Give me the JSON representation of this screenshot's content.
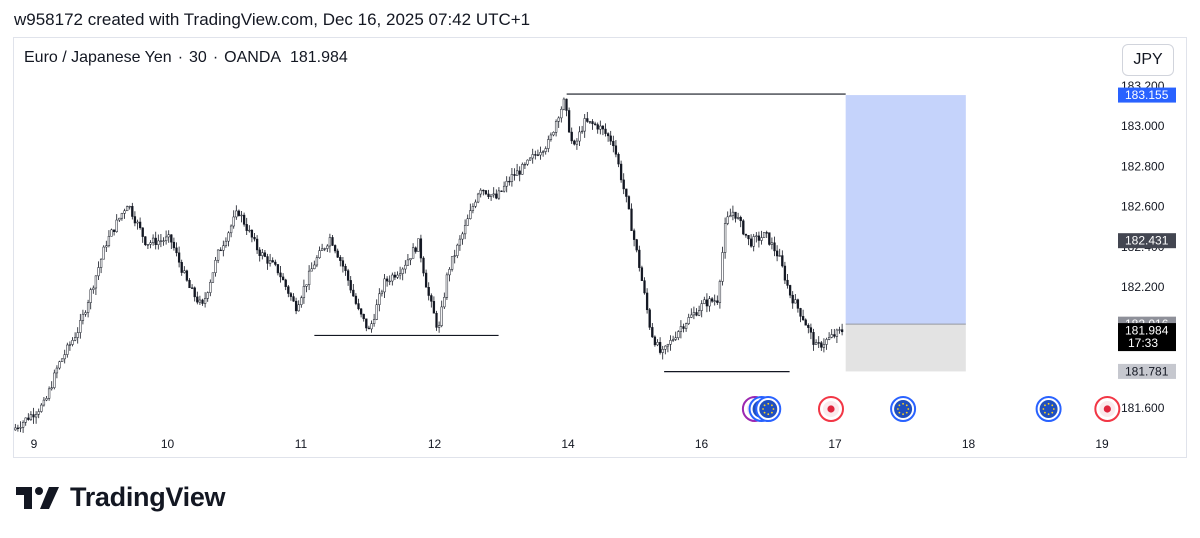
{
  "header": {
    "caption": "w958172 created with TradingView.com, Dec 16, 2025 07:42 UTC+1",
    "symbol": "Euro / Japanese Yen",
    "interval": "30",
    "exchange": "OANDA",
    "last_price": "181.984",
    "currency_button": "JPY"
  },
  "brand": {
    "name": "TradingView",
    "icon": "tradingview-logo-icon"
  },
  "colors": {
    "candle": "#131722",
    "target_zone": "#c5d3fb",
    "stop_zone": "#e3e3e3",
    "price_blue": "#2962ff",
    "label_dark": "#434651",
    "label_grey": "#8e9099",
    "event_red": "#f23645",
    "event_blue": "#2962ff",
    "event_purple": "#9c27b0"
  },
  "chart_data": {
    "type": "candlestick",
    "x_ticks": [
      {
        "label": "9",
        "t": 0
      },
      {
        "label": "10",
        "t": 1
      },
      {
        "label": "11",
        "t": 2
      },
      {
        "label": "12",
        "t": 3
      },
      {
        "label": "14",
        "t": 4
      },
      {
        "label": "16",
        "t": 5
      },
      {
        "label": "17",
        "t": 6
      },
      {
        "label": "18",
        "t": 7
      },
      {
        "label": "19",
        "t": 8
      }
    ],
    "ylim": [
      181.44,
      183.22
    ],
    "y_ticks": [
      {
        "value": 183.2,
        "label": "183.200"
      },
      {
        "value": 183.0,
        "label": "183.000"
      },
      {
        "value": 182.8,
        "label": "182.800"
      },
      {
        "value": 182.6,
        "label": "182.600"
      },
      {
        "value": 182.4,
        "label": "182.400"
      },
      {
        "value": 182.2,
        "label": "182.200"
      },
      {
        "value": 181.6,
        "label": "181.600"
      }
    ],
    "price_labels": [
      {
        "value": 183.155,
        "label": "183.155",
        "style": "blue"
      },
      {
        "value": 182.431,
        "label": "182.431",
        "style": "dark"
      },
      {
        "value": 182.016,
        "label": "182.016",
        "style": "grey"
      },
      {
        "value": 181.984,
        "label": "181.984",
        "sub": "17:33",
        "style": "black"
      },
      {
        "value": 181.781,
        "label": "181.781",
        "style": "lightgrey"
      }
    ],
    "path": [
      [
        -0.14,
        181.49
      ],
      [
        0.1,
        181.62
      ],
      [
        0.2,
        181.81
      ],
      [
        0.36,
        182.0
      ],
      [
        0.56,
        182.42
      ],
      [
        0.72,
        182.62
      ],
      [
        0.86,
        182.42
      ],
      [
        1.04,
        182.44
      ],
      [
        1.18,
        182.2
      ],
      [
        1.28,
        182.1
      ],
      [
        1.4,
        182.37
      ],
      [
        1.55,
        182.58
      ],
      [
        1.7,
        182.38
      ],
      [
        1.85,
        182.28
      ],
      [
        1.98,
        182.1
      ],
      [
        2.12,
        182.32
      ],
      [
        2.24,
        182.45
      ],
      [
        2.35,
        182.28
      ],
      [
        2.45,
        182.08
      ],
      [
        2.53,
        181.98
      ],
      [
        2.64,
        182.22
      ],
      [
        2.78,
        182.3
      ],
      [
        2.9,
        182.42
      ],
      [
        2.97,
        182.17
      ],
      [
        3.05,
        181.98
      ],
      [
        3.12,
        182.28
      ],
      [
        3.24,
        182.48
      ],
      [
        3.36,
        182.7
      ],
      [
        3.48,
        182.64
      ],
      [
        3.6,
        182.75
      ],
      [
        3.7,
        182.8
      ],
      [
        3.8,
        182.88
      ],
      [
        3.88,
        182.92
      ],
      [
        3.94,
        183.05
      ],
      [
        3.99,
        183.12
      ],
      [
        4.06,
        182.88
      ],
      [
        4.14,
        183.02
      ],
      [
        4.25,
        183.0
      ],
      [
        4.36,
        182.92
      ],
      [
        4.46,
        182.62
      ],
      [
        4.55,
        182.32
      ],
      [
        4.64,
        181.98
      ],
      [
        4.72,
        181.86
      ],
      [
        4.86,
        182.0
      ],
      [
        5.04,
        182.12
      ],
      [
        5.14,
        182.14
      ],
      [
        5.2,
        182.52
      ],
      [
        5.26,
        182.58
      ],
      [
        5.38,
        182.42
      ],
      [
        5.5,
        182.46
      ],
      [
        5.6,
        182.35
      ],
      [
        5.68,
        182.17
      ],
      [
        5.78,
        182.05
      ],
      [
        5.88,
        181.9
      ],
      [
        5.99,
        181.95
      ],
      [
        6.07,
        181.984
      ]
    ],
    "lines": [
      {
        "name": "high-level",
        "t1": 3.99,
        "t2": 6.08,
        "value": 183.16
      },
      {
        "name": "low-level-a",
        "t1": 2.1,
        "t2": 3.48,
        "value": 181.96
      },
      {
        "name": "low-level-b",
        "t1": 4.72,
        "t2": 5.66,
        "value": 181.78
      }
    ],
    "position": {
      "t1": 6.08,
      "t2": 6.98,
      "entry": 182.016,
      "target": 183.155,
      "stop": 181.781
    },
    "events": [
      {
        "t": 5.4,
        "type": "custom",
        "color": "#9c27b0"
      },
      {
        "t": 5.45,
        "type": "eu",
        "color": "#2962ff"
      },
      {
        "t": 5.5,
        "type": "eu",
        "color": "#2962ff"
      },
      {
        "t": 5.97,
        "type": "jp",
        "color": "#f23645"
      },
      {
        "t": 6.51,
        "type": "eu",
        "color": "#2962ff"
      },
      {
        "t": 7.6,
        "type": "eu",
        "color": "#2962ff"
      },
      {
        "t": 8.04,
        "type": "jp",
        "color": "#f23645"
      }
    ]
  }
}
